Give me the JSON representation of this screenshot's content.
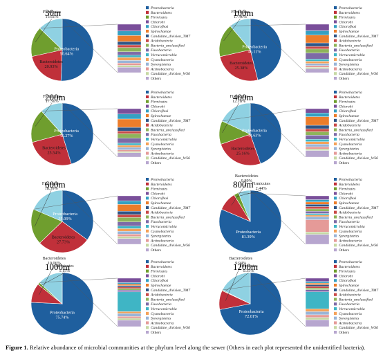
{
  "caption": {
    "label": "Figure 1.",
    "text": "Relative abundance of microbial communities at the phylum level along the sewer (Others in each plot represented the unidentified bacteria)."
  },
  "colors": {
    "Proteobacteria": "#1f5f9e",
    "Bacteroidetes": "#c0303a",
    "Firmicutes": "#6f9e2e",
    "Chlorobi": "#7a4f9a",
    "Chloroflexi": "#35a0c2",
    "Spirochaetae": "#ec7d2b",
    "Candidate_division_TM7": "#2f5687",
    "Acidobacteria": "#c94a48",
    "Bacteria_unclassified": "#8eb45a",
    "Fusobacteria": "#7d6aa6",
    "Verrucomicrobia": "#3fb5c5",
    "Cyanobacteria": "#f4a259",
    "Synergistetes": "#99b5d8",
    "Actinobacteria": "#e59a98",
    "Candidate_division_WS6": "#c6d9a4",
    "Others": "#b7a6cf"
  },
  "legend_items": [
    "Proteobacteria",
    "Bacteroidetes",
    "Firmicutes",
    "Chlorobi",
    "Chloroflexi",
    "Spirochaetae",
    "Candidate_division_TM7",
    "Acidobacteria",
    "Bacteria_unclassified",
    "Fusobacteria",
    "Verrucomicrobia",
    "Cyanobacteria",
    "Synergistetes",
    "Actinobacteria",
    "Candidate_division_WS6",
    "Others"
  ],
  "chart_data": [
    {
      "type": "pie",
      "title": "30m",
      "slices": [
        {
          "name": "Proteobacteria",
          "value": 50.64,
          "label": "50.64%"
        },
        {
          "name": "Bacteroidetes",
          "value": 20.93,
          "label": "20.93%"
        },
        {
          "name": "Firmicutes",
          "value": 15.61,
          "label": "15.61%"
        },
        {
          "name": "Rest",
          "value": 12.82,
          "label": ""
        }
      ],
      "breakdown": [
        {
          "name": "Chlorobi",
          "value": 1.8
        },
        {
          "name": "Chloroflexi",
          "value": 1.2
        },
        {
          "name": "Spirochaetae",
          "value": 1.6
        },
        {
          "name": "Candidate_division_TM7",
          "value": 0.9
        },
        {
          "name": "Acidobacteria",
          "value": 0.7
        },
        {
          "name": "Bacteria_unclassified",
          "value": 1.1
        },
        {
          "name": "Fusobacteria",
          "value": 0.9
        },
        {
          "name": "Verrucomicrobia",
          "value": 0.6
        },
        {
          "name": "Cyanobacteria",
          "value": 0.8
        },
        {
          "name": "Synergistetes",
          "value": 0.7
        },
        {
          "name": "Actinobacteria",
          "value": 0.6
        },
        {
          "name": "Candidate_division_WS6",
          "value": 0.5
        },
        {
          "name": "Others",
          "value": 1.42
        }
      ]
    },
    {
      "type": "pie",
      "title": "100m",
      "slices": [
        {
          "name": "Proteobacteria",
          "value": 46.11,
          "label": "46.11%"
        },
        {
          "name": "Bacteroidetes",
          "value": 25.38,
          "label": "25.38%"
        },
        {
          "name": "Firmicutes",
          "value": 17.4,
          "label": "17.40%"
        },
        {
          "name": "Rest",
          "value": 11.11,
          "label": ""
        }
      ],
      "breakdown": [
        {
          "name": "Chlorobi",
          "value": 1.5
        },
        {
          "name": "Chloroflexi",
          "value": 1.0
        },
        {
          "name": "Spirochaetae",
          "value": 1.8
        },
        {
          "name": "Candidate_division_TM7",
          "value": 0.8
        },
        {
          "name": "Acidobacteria",
          "value": 0.6
        },
        {
          "name": "Bacteria_unclassified",
          "value": 0.9
        },
        {
          "name": "Fusobacteria",
          "value": 1.4
        },
        {
          "name": "Verrucomicrobia",
          "value": 0.5
        },
        {
          "name": "Cyanobacteria",
          "value": 0.5
        },
        {
          "name": "Synergistetes",
          "value": 0.5
        },
        {
          "name": "Actinobacteria",
          "value": 0.4
        },
        {
          "name": "Candidate_division_WS6",
          "value": 0.3
        },
        {
          "name": "Others",
          "value": 0.91
        }
      ]
    },
    {
      "type": "pie",
      "title": "200m",
      "slices": [
        {
          "name": "Proteobacteria",
          "value": 45.27,
          "label": "45.27%"
        },
        {
          "name": "Bacteroidetes",
          "value": 25.54,
          "label": "25.54%"
        },
        {
          "name": "Firmicutes",
          "value": 17.56,
          "label": "17.56%"
        },
        {
          "name": "Rest",
          "value": 11.63,
          "label": ""
        }
      ],
      "breakdown": [
        {
          "name": "Chlorobi",
          "value": 1.3
        },
        {
          "name": "Chloroflexi",
          "value": 1.2
        },
        {
          "name": "Spirochaetae",
          "value": 2.0
        },
        {
          "name": "Candidate_division_TM7",
          "value": 0.9
        },
        {
          "name": "Acidobacteria",
          "value": 0.6
        },
        {
          "name": "Bacteria_unclassified",
          "value": 1.1
        },
        {
          "name": "Fusobacteria",
          "value": 1.2
        },
        {
          "name": "Verrucomicrobia",
          "value": 0.5
        },
        {
          "name": "Cyanobacteria",
          "value": 0.5
        },
        {
          "name": "Synergistetes",
          "value": 0.6
        },
        {
          "name": "Actinobacteria",
          "value": 0.4
        },
        {
          "name": "Candidate_division_WS6",
          "value": 0.3
        },
        {
          "name": "Others",
          "value": 1.03
        }
      ]
    },
    {
      "type": "pie",
      "title": "400m",
      "slices": [
        {
          "name": "Proteobacteria",
          "value": 44.63,
          "label": "44.63%"
        },
        {
          "name": "Bacteroidetes",
          "value": 25.16,
          "label": "25.16%"
        },
        {
          "name": "Firmicutes",
          "value": 12.18,
          "label": "12.18%"
        },
        {
          "name": "Rest",
          "value": 18.03,
          "label": ""
        }
      ],
      "breakdown": [
        {
          "name": "Chlorobi",
          "value": 1.6
        },
        {
          "name": "Chloroflexi",
          "value": 1.4
        },
        {
          "name": "Spirochaetae",
          "value": 3.2
        },
        {
          "name": "Candidate_division_TM7",
          "value": 1.3
        },
        {
          "name": "Acidobacteria",
          "value": 1.1
        },
        {
          "name": "Bacteria_unclassified",
          "value": 1.3
        },
        {
          "name": "Fusobacteria",
          "value": 1.5
        },
        {
          "name": "Verrucomicrobia",
          "value": 0.9
        },
        {
          "name": "Cyanobacteria",
          "value": 0.9
        },
        {
          "name": "Synergistetes",
          "value": 1.0
        },
        {
          "name": "Actinobacteria",
          "value": 0.8
        },
        {
          "name": "Candidate_division_WS6",
          "value": 0.6
        },
        {
          "name": "Others",
          "value": 2.43
        }
      ]
    },
    {
      "type": "pie",
      "title": "600m",
      "slices": [
        {
          "name": "Proteobacteria",
          "value": 35.09,
          "label": "35.09%"
        },
        {
          "name": "Bacteroidetes",
          "value": 27.73,
          "label": "27.73%"
        },
        {
          "name": "Firmicutes",
          "value": 18.59,
          "label": "18.59%"
        },
        {
          "name": "Rest",
          "value": 18.59,
          "label": ""
        }
      ],
      "breakdown": [
        {
          "name": "Chlorobi",
          "value": 1.9
        },
        {
          "name": "Chloroflexi",
          "value": 1.4
        },
        {
          "name": "Spirochaetae",
          "value": 2.6
        },
        {
          "name": "Candidate_division_TM7",
          "value": 1.3
        },
        {
          "name": "Acidobacteria",
          "value": 1.1
        },
        {
          "name": "Bacteria_unclassified",
          "value": 1.7
        },
        {
          "name": "Fusobacteria",
          "value": 1.6
        },
        {
          "name": "Verrucomicrobia",
          "value": 1.0
        },
        {
          "name": "Cyanobacteria",
          "value": 1.0
        },
        {
          "name": "Synergistetes",
          "value": 1.1
        },
        {
          "name": "Actinobacteria",
          "value": 0.9
        },
        {
          "name": "Candidate_division_WS6",
          "value": 0.8
        },
        {
          "name": "Others",
          "value": 2.19
        }
      ]
    },
    {
      "type": "pie",
      "title": "800m",
      "slices": [
        {
          "name": "Proteobacteria",
          "value": 81.39,
          "label": "81.39%"
        },
        {
          "name": "Bacteroidetes",
          "value": 9.89,
          "label": "9.89%"
        },
        {
          "name": "Firmicutes",
          "value": 2.44,
          "label": "2.44%"
        },
        {
          "name": "Rest",
          "value": 6.28,
          "label": ""
        }
      ],
      "breakdown": [
        {
          "name": "Chlorobi",
          "value": 0.5
        },
        {
          "name": "Chloroflexi",
          "value": 0.3
        },
        {
          "name": "Spirochaetae",
          "value": 0.3
        },
        {
          "name": "Candidate_division_TM7",
          "value": 0.3
        },
        {
          "name": "Acidobacteria",
          "value": 0.3
        },
        {
          "name": "Bacteria_unclassified",
          "value": 0.3
        },
        {
          "name": "Fusobacteria",
          "value": 0.3
        },
        {
          "name": "Verrucomicrobia",
          "value": 0.2
        },
        {
          "name": "Cyanobacteria",
          "value": 0.2
        },
        {
          "name": "Synergistetes",
          "value": 0.4
        },
        {
          "name": "Actinobacteria",
          "value": 1.6
        },
        {
          "name": "Candidate_division_WS6",
          "value": 0.3
        },
        {
          "name": "Others",
          "value": 1.28
        }
      ]
    },
    {
      "type": "pie",
      "title": "1000m",
      "slices": [
        {
          "name": "Proteobacteria",
          "value": 75.74,
          "label": "75.74%"
        },
        {
          "name": "Bacteroidetes",
          "value": 10.06,
          "label": "10.06%"
        },
        {
          "name": "Firmicutes",
          "value": 1.15,
          "label": "1.15%"
        },
        {
          "name": "Rest",
          "value": 13.05,
          "label": ""
        }
      ],
      "breakdown": [
        {
          "name": "Chlorobi",
          "value": 1.2
        },
        {
          "name": "Chloroflexi",
          "value": 0.4
        },
        {
          "name": "Spirochaetae",
          "value": 0.4
        },
        {
          "name": "Candidate_division_TM7",
          "value": 0.4
        },
        {
          "name": "Acidobacteria",
          "value": 0.4
        },
        {
          "name": "Bacteria_unclassified",
          "value": 0.4
        },
        {
          "name": "Fusobacteria",
          "value": 0.5
        },
        {
          "name": "Verrucomicrobia",
          "value": 5.3
        },
        {
          "name": "Cyanobacteria",
          "value": 0.5
        },
        {
          "name": "Synergistetes",
          "value": 0.8
        },
        {
          "name": "Actinobacteria",
          "value": 0.5
        },
        {
          "name": "Candidate_division_WS6",
          "value": 0.5
        },
        {
          "name": "Others",
          "value": 1.75
        }
      ]
    },
    {
      "type": "pie",
      "title": "1200m",
      "slices": [
        {
          "name": "Proteobacteria",
          "value": 72.01,
          "label": "72.01%"
        },
        {
          "name": "Bacteroidetes",
          "value": 9.94,
          "label": "9.94%"
        },
        {
          "name": "Firmicutes",
          "value": 0.35,
          "label": "0.35%"
        },
        {
          "name": "Rest",
          "value": 17.7,
          "label": ""
        }
      ],
      "breakdown": [
        {
          "name": "Chlorobi",
          "value": 1.2
        },
        {
          "name": "Chloroflexi",
          "value": 0.6
        },
        {
          "name": "Spirochaetae",
          "value": 0.6
        },
        {
          "name": "Candidate_division_TM7",
          "value": 0.6
        },
        {
          "name": "Acidobacteria",
          "value": 0.6
        },
        {
          "name": "Bacteria_unclassified",
          "value": 0.6
        },
        {
          "name": "Fusobacteria",
          "value": 0.8
        },
        {
          "name": "Verrucomicrobia",
          "value": 6.2
        },
        {
          "name": "Cyanobacteria",
          "value": 1.0
        },
        {
          "name": "Synergistetes",
          "value": 1.2
        },
        {
          "name": "Actinobacteria",
          "value": 1.0
        },
        {
          "name": "Candidate_division_WS6",
          "value": 0.8
        },
        {
          "name": "Others",
          "value": 2.5
        }
      ]
    }
  ]
}
